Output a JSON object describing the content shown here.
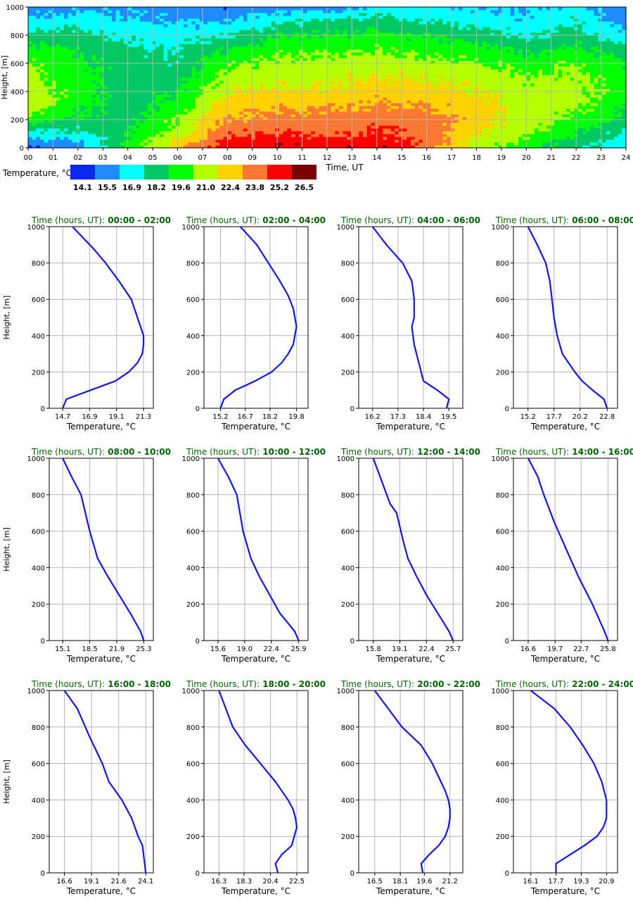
{
  "heatmap": {
    "ylabel": "Height, [m]",
    "xlabel": "Time, UT",
    "y_ticks": [
      "0",
      "200",
      "400",
      "600",
      "800",
      "1000"
    ],
    "x_ticks": [
      "00",
      "01",
      "02",
      "03",
      "04",
      "05",
      "06",
      "07",
      "08",
      "09",
      "10",
      "11",
      "12",
      "13",
      "14",
      "15",
      "16",
      "17",
      "18",
      "19",
      "20",
      "21",
      "22",
      "23",
      "24"
    ],
    "colorbar_label": "Temperature, °C",
    "colorbar_values": [
      "14.1",
      "15.5",
      "16.9",
      "18.2",
      "19.6",
      "21.0",
      "22.4",
      "23.8",
      "25.2",
      "26.5"
    ],
    "colors": [
      "#0a28f0",
      "#1e8cff",
      "#00ffff",
      "#00c864",
      "#00ff00",
      "#b4ff00",
      "#ffd200",
      "#ff7832",
      "#ff0000",
      "#780000"
    ]
  },
  "profile_title_prefix": "Time (hours, UT):",
  "profile_xlabel": "Temperature, °C",
  "profile_ylabel": "Height, [m]",
  "profile_y_ticks": [
    "0",
    "200",
    "400",
    "600",
    "800",
    "1000"
  ],
  "line_color": "#1414e6",
  "title_color": "#006400",
  "chart_data": [
    {
      "type": "heatmap",
      "title": "",
      "xlabel": "Time, UT",
      "ylabel": "Height, [m]",
      "xlim": [
        0,
        24
      ],
      "ylim": [
        0,
        1000
      ],
      "x": [
        0,
        2,
        4,
        6,
        8,
        10,
        12,
        14,
        16,
        18,
        20,
        22,
        24
      ],
      "heights": [
        0,
        100,
        200,
        300,
        400,
        500,
        600,
        700,
        800,
        900,
        1000
      ],
      "temperature_levels": [
        14.1,
        15.5,
        16.9,
        18.2,
        19.6,
        21.0,
        22.4,
        23.8,
        25.2,
        26.5
      ],
      "values": [
        [
          14.7,
          15.2,
          19.5,
          22.8,
          25.3,
          25.9,
          25.7,
          25.8,
          24.1,
          20.8,
          19.5,
          17.7,
          16.5
        ],
        [
          17.0,
          17.0,
          18.8,
          21.0,
          24.3,
          24.7,
          24.1,
          24.7,
          24.0,
          21.8,
          20.5,
          18.9,
          17.0
        ],
        [
          19.7,
          18.6,
          18.4,
          20.3,
          23.2,
          23.6,
          23.7,
          24.0,
          23.8,
          22.5,
          21.0,
          20.1,
          18.5
        ],
        [
          21.1,
          19.4,
          18.2,
          19.5,
          22.4,
          22.9,
          22.9,
          23.2,
          23.1,
          22.3,
          21.0,
          20.7,
          19.0
        ],
        [
          21.3,
          19.8,
          18.0,
          18.9,
          21.6,
          22.1,
          21.8,
          22.6,
          22.3,
          21.8,
          20.8,
          20.9,
          19.5
        ],
        [
          20.8,
          19.6,
          17.9,
          18.4,
          20.8,
          21.2,
          21.3,
          21.8,
          21.6,
          21.3,
          20.3,
          20.6,
          19.5
        ],
        [
          20.3,
          19.3,
          18.1,
          17.8,
          20.1,
          20.7,
          20.8,
          21.1,
          20.7,
          20.4,
          19.7,
          20.2,
          19.0
        ],
        [
          19.3,
          18.8,
          17.9,
          17.5,
          19.0,
          19.8,
          20.0,
          20.2,
          19.9,
          19.4,
          18.5,
          19.3,
          18.0
        ],
        [
          18.2,
          18.0,
          17.1,
          16.8,
          17.5,
          18.7,
          19.0,
          19.3,
          18.9,
          18.1,
          17.3,
          18.1,
          16.5
        ],
        [
          16.5,
          16.8,
          16.4,
          16.1,
          16.1,
          17.2,
          17.8,
          18.2,
          17.5,
          17.0,
          16.5,
          17.4,
          15.5
        ],
        [
          15.5,
          16.0,
          15.9,
          15.3,
          15.1,
          15.6,
          15.8,
          16.6,
          16.6,
          16.3,
          16.2,
          16.5,
          15.0
        ]
      ]
    },
    {
      "type": "line",
      "title": "Time (hours, UT): 00:00 - 02:00",
      "xlabel": "Temperature, °C",
      "ylabel": "Height, [m]",
      "xticks": [
        "14.7",
        "16.9",
        "19.1",
        "21.3"
      ],
      "xlim": [
        13.6,
        22.1
      ],
      "ylim": [
        0,
        1000
      ],
      "x": [
        14.7,
        15.0,
        17.0,
        19.0,
        20.1,
        20.8,
        21.2,
        21.3,
        21.3,
        20.8,
        20.3,
        19.3,
        18.2,
        17.2,
        16.2,
        15.5
      ],
      "y": [
        0,
        50,
        100,
        150,
        200,
        250,
        300,
        350,
        400,
        500,
        600,
        700,
        800,
        880,
        950,
        1000
      ]
    },
    {
      "type": "line",
      "title": "Time (hours, UT): 02:00 - 04:00",
      "xlabel": "Temperature, °C",
      "ylabel": "Height, [m]",
      "xticks": [
        "15.2",
        "16.7",
        "18.2",
        "19.8"
      ],
      "xlim": [
        14.2,
        20.5
      ],
      "ylim": [
        0,
        1000
      ],
      "x": [
        15.2,
        15.4,
        16.1,
        17.3,
        18.3,
        18.9,
        19.3,
        19.6,
        19.8,
        19.6,
        19.3,
        18.8,
        18.1,
        17.4,
        16.4
      ],
      "y": [
        0,
        50,
        100,
        150,
        200,
        250,
        300,
        350,
        450,
        550,
        620,
        700,
        800,
        900,
        1000
      ]
    },
    {
      "type": "line",
      "title": "Time (hours, UT): 04:00 - 06:00",
      "xlabel": "Temperature, °C",
      "ylabel": "Height, [m]",
      "xticks": [
        "16.2",
        "17.3",
        "18.4",
        "19.5"
      ],
      "xlim": [
        15.6,
        20.1
      ],
      "ylim": [
        0,
        1000
      ],
      "x": [
        19.4,
        19.5,
        19.0,
        18.4,
        18.3,
        18.2,
        18.1,
        18.0,
        17.9,
        18.0,
        18.0,
        17.9,
        17.5,
        16.8,
        16.2
      ],
      "y": [
        0,
        50,
        100,
        150,
        200,
        250,
        300,
        350,
        450,
        500,
        600,
        700,
        800,
        900,
        1000
      ]
    },
    {
      "type": "line",
      "title": "Time (hours, UT): 06:00 - 08:00",
      "xlabel": "Temperature, °C",
      "ylabel": "Height, [m]",
      "xticks": [
        "15.2",
        "17.7",
        "20.2",
        "22.8"
      ],
      "xlim": [
        13.8,
        23.8
      ],
      "ylim": [
        0,
        1000
      ],
      "x": [
        22.8,
        22.5,
        21.4,
        20.4,
        19.7,
        19.1,
        18.5,
        18.0,
        17.7,
        17.5,
        17.3,
        16.9,
        16.1,
        15.2
      ],
      "y": [
        0,
        50,
        100,
        150,
        200,
        250,
        300,
        400,
        500,
        600,
        700,
        800,
        900,
        1000
      ]
    },
    {
      "type": "line",
      "title": "Time (hours, UT): 08:00 - 10:00",
      "xlabel": "Temperature, °C",
      "ylabel": "Height, [m]",
      "xticks": [
        "15.1",
        "18.5",
        "21.9",
        "25.3"
      ],
      "xlim": [
        13.4,
        26.5
      ],
      "ylim": [
        0,
        1000
      ],
      "x": [
        25.3,
        24.9,
        23.6,
        22.2,
        20.8,
        19.5,
        18.5,
        17.4,
        16.2,
        15.1
      ],
      "y": [
        0,
        50,
        150,
        250,
        350,
        450,
        600,
        800,
        900,
        1000
      ]
    },
    {
      "type": "line",
      "title": "Time (hours, UT): 10:00 - 12:00",
      "xlabel": "Temperature, °C",
      "ylabel": "Height, [m]",
      "xticks": [
        "15.6",
        "19.0",
        "22.4",
        "25.9"
      ],
      "xlim": [
        13.8,
        27.1
      ],
      "ylim": [
        0,
        1000
      ],
      "x": [
        25.9,
        25.4,
        23.5,
        22.2,
        20.9,
        19.8,
        18.8,
        18.0,
        16.9,
        15.6
      ],
      "y": [
        0,
        50,
        150,
        250,
        350,
        450,
        600,
        800,
        900,
        1000
      ]
    },
    {
      "type": "line",
      "title": "Time (hours, UT): 12:00 - 14:00",
      "xlabel": "Temperature, °C",
      "ylabel": "Height, [m]",
      "xticks": [
        "15.8",
        "19.1",
        "22.4",
        "25.7"
      ],
      "xlim": [
        14.0,
        26.9
      ],
      "ylim": [
        0,
        1000
      ],
      "x": [
        25.7,
        25.2,
        23.8,
        22.4,
        21.2,
        20.1,
        19.5,
        18.7,
        17.9,
        15.8
      ],
      "y": [
        0,
        50,
        150,
        250,
        350,
        450,
        550,
        700,
        750,
        1000
      ]
    },
    {
      "type": "line",
      "title": "Time (hours, UT): 14:00 - 16:00",
      "xlabel": "Temperature, °C",
      "ylabel": "Height, [m]",
      "xticks": [
        "16.6",
        "19.7",
        "22.7",
        "25.8"
      ],
      "xlim": [
        14.9,
        26.9
      ],
      "ylim": [
        0,
        1000
      ],
      "x": [
        25.8,
        25.4,
        24.0,
        22.4,
        21.0,
        19.6,
        18.4,
        17.7,
        16.6
      ],
      "y": [
        0,
        50,
        200,
        350,
        500,
        650,
        800,
        900,
        1000
      ]
    },
    {
      "type": "line",
      "title": "Time (hours, UT): 16:00 - 18:00",
      "xlabel": "Temperature, °C",
      "ylabel": "Height, [m]",
      "xticks": [
        "16.6",
        "19.1",
        "21.6",
        "24.1"
      ],
      "xlim": [
        15.2,
        24.8
      ],
      "ylim": [
        0,
        1000
      ],
      "x": [
        24.1,
        24.0,
        23.9,
        23.8,
        23.4,
        22.8,
        21.9,
        20.7,
        20.1,
        18.9,
        17.8,
        16.6
      ],
      "y": [
        0,
        50,
        100,
        150,
        200,
        300,
        400,
        500,
        600,
        750,
        900,
        1000
      ]
    },
    {
      "type": "line",
      "title": "Time (hours, UT): 18:00 - 20:00",
      "xlabel": "Temperature, °C",
      "ylabel": "Height, [m]",
      "xticks": [
        "16.3",
        "18.3",
        "20.4",
        "22.5"
      ],
      "xlim": [
        15.1,
        23.4
      ],
      "ylim": [
        0,
        1000
      ],
      "x": [
        21.0,
        20.8,
        21.3,
        22.1,
        22.3,
        22.5,
        22.4,
        22.2,
        21.8,
        20.8,
        19.6,
        18.4,
        17.4,
        16.3
      ],
      "y": [
        0,
        50,
        100,
        150,
        200,
        250,
        300,
        350,
        400,
        500,
        600,
        700,
        800,
        1000
      ]
    },
    {
      "type": "line",
      "title": "Time (hours, UT): 20:00 - 22:00",
      "xlabel": "Temperature, °C",
      "ylabel": "Height, [m]",
      "xticks": [
        "16.5",
        "18.1",
        "19.6",
        "21.2"
      ],
      "xlim": [
        15.5,
        22.0
      ],
      "ylim": [
        0,
        1000
      ],
      "x": [
        19.5,
        19.4,
        19.9,
        20.5,
        20.9,
        21.1,
        21.2,
        21.2,
        21.1,
        20.9,
        20.1,
        19.4,
        18.2,
        16.5
      ],
      "y": [
        0,
        50,
        100,
        150,
        200,
        250,
        300,
        350,
        400,
        450,
        600,
        700,
        800,
        1000
      ]
    },
    {
      "type": "line",
      "title": "Time (hours, UT): 22:00 - 24:00",
      "xlabel": "Temperature, °C",
      "ylabel": "Height, [m]",
      "xticks": [
        "16.1",
        "17.7",
        "19.3",
        "20.9"
      ],
      "xlim": [
        15.0,
        21.6
      ],
      "ylim": [
        0,
        1000
      ],
      "x": [
        17.7,
        17.7,
        18.6,
        19.5,
        20.3,
        20.7,
        20.9,
        20.9,
        20.6,
        20.1,
        19.4,
        18.6,
        17.6,
        16.1
      ],
      "y": [
        0,
        50,
        100,
        150,
        200,
        250,
        300,
        400,
        500,
        600,
        700,
        800,
        900,
        1000
      ]
    }
  ]
}
